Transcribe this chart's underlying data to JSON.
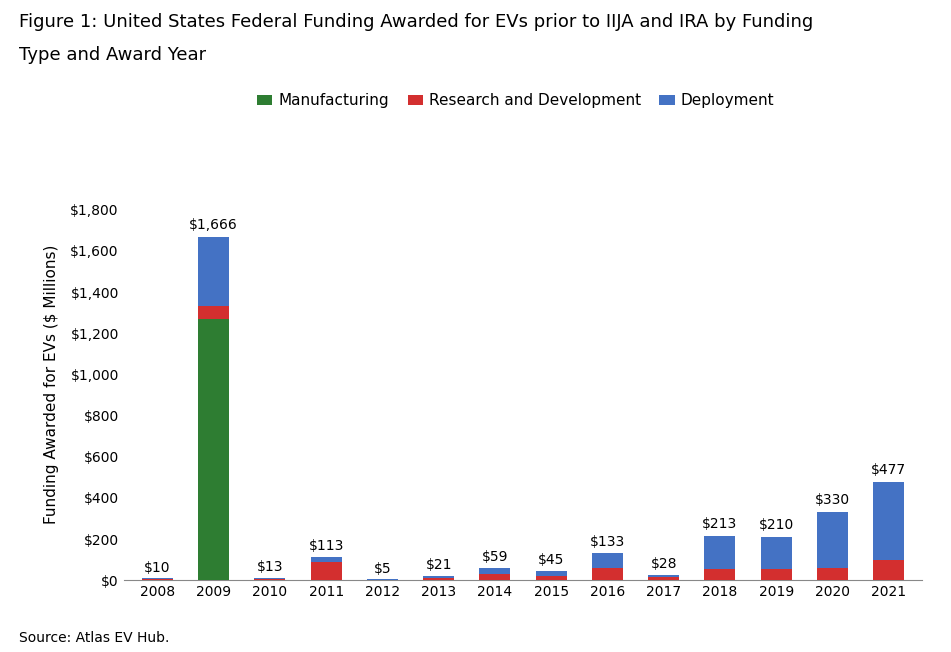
{
  "title_line1": "Figure 1: United States Federal Funding Awarded for EVs prior to IIJA and IRA by Funding",
  "title_line2": "Type and Award Year",
  "ylabel": "Funding Awarded for EVs ($ Millions)",
  "source": "Source: Atlas EV Hub.",
  "years": [
    2008,
    2009,
    2010,
    2011,
    2012,
    2013,
    2014,
    2015,
    2016,
    2017,
    2018,
    2019,
    2020,
    2021
  ],
  "manufacturing": [
    0,
    1270,
    0,
    0,
    0,
    0,
    0,
    0,
    0,
    0,
    0,
    0,
    0,
    0
  ],
  "rd": [
    5,
    60,
    8,
    90,
    3,
    10,
    30,
    20,
    60,
    15,
    55,
    55,
    60,
    100
  ],
  "deployment": [
    5,
    336,
    5,
    23,
    2,
    11,
    29,
    25,
    73,
    13,
    158,
    155,
    270,
    377
  ],
  "totals": [
    10,
    1666,
    13,
    113,
    5,
    21,
    59,
    45,
    133,
    28,
    213,
    210,
    330,
    477
  ],
  "color_manufacturing": "#2e7d32",
  "color_rd": "#d32f2f",
  "color_deployment": "#4472c4",
  "legend_labels": [
    "Manufacturing",
    "Research and Development",
    "Deployment"
  ],
  "ylim": [
    0,
    1900
  ],
  "yticks": [
    0,
    200,
    400,
    600,
    800,
    1000,
    1200,
    1400,
    1600,
    1800
  ],
  "title_fontsize": 13,
  "axis_fontsize": 11,
  "tick_fontsize": 10,
  "annotation_fontsize": 10
}
